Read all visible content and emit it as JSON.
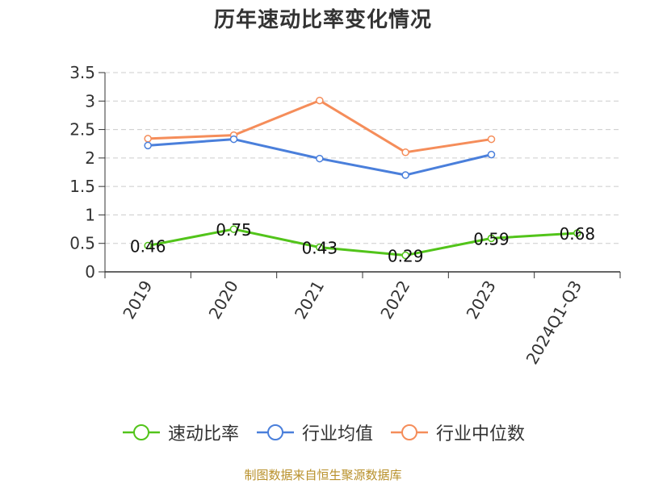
{
  "chart_data": {
    "type": "line",
    "title": "历年速动比率变化情况",
    "categories": [
      "2019",
      "2020",
      "2021",
      "2022",
      "2023",
      "2024Q1-Q3"
    ],
    "ylim": [
      0,
      3.5
    ],
    "yticks": [
      "0",
      "0.5",
      "1",
      "1.5",
      "2",
      "2.5",
      "3",
      "3.5"
    ],
    "grid": true,
    "legend_position": "bottom",
    "series": [
      {
        "name": "速动比率",
        "color": "#52c41a",
        "values": [
          0.46,
          0.75,
          0.43,
          0.29,
          0.59,
          0.68
        ],
        "show_labels": true
      },
      {
        "name": "行业均值",
        "color": "#4a7fdb",
        "values": [
          2.22,
          2.33,
          1.99,
          1.7,
          2.06,
          null
        ],
        "show_labels": false
      },
      {
        "name": "行业中位数",
        "color": "#f58d5a",
        "values": [
          2.34,
          2.4,
          3.01,
          2.1,
          2.33,
          null
        ],
        "show_labels": false
      }
    ]
  },
  "source": "制图数据来自恒生聚源数据库"
}
